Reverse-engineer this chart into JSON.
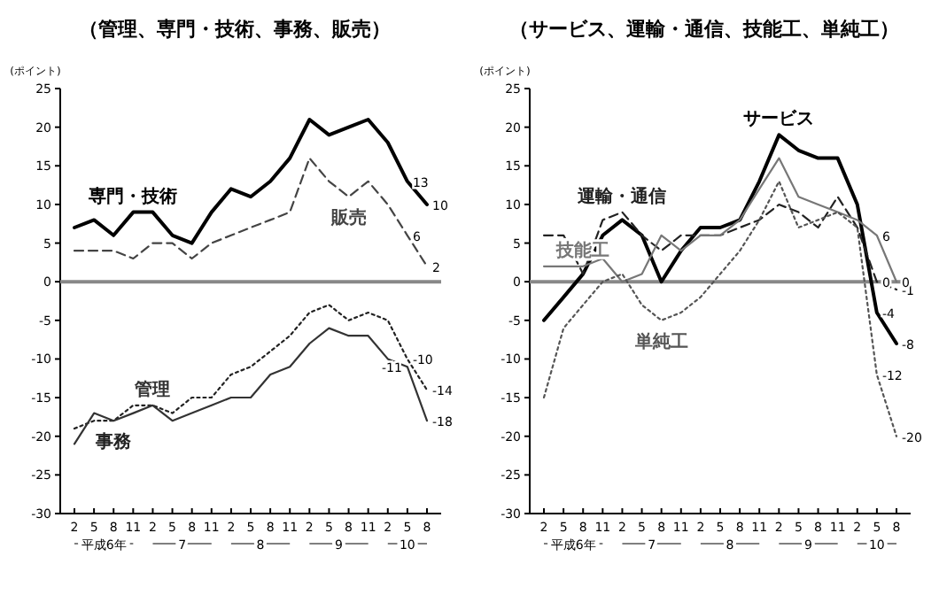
{
  "chart_data": [
    {
      "type": "line",
      "title": "（管理、専門・技術、事務、販売）",
      "ylabel": "(ポイント)",
      "categories": [
        "2",
        "5",
        "8",
        "11",
        "2",
        "5",
        "8",
        "11",
        "2",
        "5",
        "8",
        "11",
        "2",
        "5",
        "8",
        "11",
        "2",
        "5",
        "8"
      ],
      "annotations": [
        "平成6年",
        "7",
        "8",
        "9",
        "10"
      ],
      "ylim": [
        -30,
        25
      ],
      "yticks": [
        -30,
        -25,
        -20,
        -15,
        -10,
        -5,
        0,
        5,
        10,
        15,
        20,
        25
      ],
      "ref_lines": [
        {
          "axis": "y",
          "value": 0,
          "color": "#888888"
        }
      ],
      "series": [
        {
          "name": "専門・技術",
          "color": "#000000",
          "line_style": "solid",
          "values": [
            7,
            8,
            6,
            9,
            9,
            6,
            5,
            9,
            12,
            11,
            13,
            16,
            21,
            19,
            20,
            21,
            18,
            13,
            10
          ],
          "value_labels": [
            null,
            null,
            null,
            null,
            null,
            null,
            null,
            null,
            null,
            null,
            null,
            null,
            null,
            null,
            null,
            null,
            null,
            "13",
            "10"
          ]
        },
        {
          "name": "販売",
          "color": "#444444",
          "line_style": "dashed",
          "values": [
            4,
            4,
            4,
            3,
            5,
            5,
            3,
            5,
            6,
            7,
            8,
            9,
            16,
            13,
            11,
            13,
            10,
            6,
            2
          ],
          "value_labels": [
            null,
            null,
            null,
            null,
            null,
            null,
            null,
            null,
            null,
            null,
            null,
            null,
            null,
            null,
            null,
            null,
            null,
            "6",
            "2"
          ]
        },
        {
          "name": "事務",
          "color": "#222222",
          "line_style": "dotted",
          "values": [
            -19,
            -18,
            -18,
            -16,
            -16,
            -17,
            -15,
            -15,
            -12,
            -11,
            -9,
            -7,
            -4,
            -3,
            -5,
            -4,
            -5,
            -10,
            -14
          ],
          "value_labels": [
            null,
            null,
            null,
            null,
            null,
            null,
            null,
            null,
            null,
            null,
            null,
            null,
            null,
            null,
            null,
            null,
            null,
            "-10",
            "-14"
          ]
        },
        {
          "name": "管理",
          "color": "#333333",
          "line_style": "solid",
          "values": [
            -21,
            -17,
            -18,
            -17,
            -16,
            -18,
            -17,
            -16,
            -15,
            -15,
            -12,
            -11,
            -8,
            -6,
            -7,
            -7,
            -10,
            -11,
            -18
          ],
          "value_labels": [
            null,
            null,
            null,
            null,
            null,
            null,
            null,
            null,
            null,
            null,
            null,
            null,
            null,
            null,
            null,
            null,
            null,
            "-11",
            "-18"
          ]
        }
      ]
    },
    {
      "type": "line",
      "title": "（サービス、運輸・通信、技能工、単純工）",
      "ylabel": "(ポイント)",
      "categories": [
        "2",
        "5",
        "8",
        "11",
        "2",
        "5",
        "8",
        "11",
        "2",
        "5",
        "8",
        "11",
        "2",
        "5",
        "8",
        "11",
        "2",
        "5",
        "8"
      ],
      "annotations": [
        "平成6年",
        "7",
        "8",
        "9",
        "10"
      ],
      "ylim": [
        -30,
        25
      ],
      "yticks": [
        -30,
        -25,
        -20,
        -15,
        -10,
        -5,
        0,
        5,
        10,
        15,
        20,
        25
      ],
      "ref_lines": [
        {
          "axis": "y",
          "value": 0,
          "color": "#888888"
        }
      ],
      "series": [
        {
          "name": "サービス",
          "color": "#000000",
          "line_style": "solid",
          "values": [
            -5,
            -2,
            1,
            6,
            8,
            6,
            0,
            4,
            7,
            7,
            8,
            13,
            19,
            17,
            16,
            16,
            10,
            -4,
            -8
          ],
          "value_labels": [
            null,
            null,
            null,
            null,
            null,
            null,
            null,
            null,
            null,
            null,
            null,
            null,
            null,
            null,
            null,
            null,
            null,
            "-4",
            "-8"
          ]
        },
        {
          "name": "運輸・通信",
          "color": "#222222",
          "line_style": "dashed",
          "values": [
            6,
            6,
            1,
            8,
            9,
            6,
            4,
            6,
            6,
            6,
            7,
            8,
            10,
            9,
            7,
            11,
            7,
            0,
            -1
          ],
          "value_labels": [
            null,
            null,
            null,
            null,
            null,
            null,
            null,
            null,
            null,
            null,
            null,
            null,
            null,
            null,
            null,
            null,
            null,
            "0",
            "-1"
          ]
        },
        {
          "name": "技能工",
          "color": "#777777",
          "line_style": "solid",
          "values": [
            2,
            2,
            2,
            3,
            0,
            1,
            6,
            4,
            6,
            6,
            8,
            12,
            16,
            11,
            10,
            9,
            8,
            6,
            0
          ],
          "value_labels": [
            null,
            null,
            null,
            null,
            null,
            null,
            null,
            null,
            null,
            null,
            null,
            null,
            null,
            null,
            null,
            null,
            null,
            "6",
            "0"
          ]
        },
        {
          "name": "単純工",
          "color": "#555555",
          "line_style": "dotted",
          "values": [
            -15,
            -6,
            -3,
            0,
            1,
            -3,
            -5,
            -4,
            -2,
            1,
            4,
            8,
            13,
            7,
            8,
            9,
            7,
            -12,
            -20
          ],
          "value_labels": [
            null,
            null,
            null,
            null,
            null,
            null,
            null,
            null,
            null,
            null,
            null,
            null,
            null,
            null,
            null,
            null,
            null,
            "-12",
            "-20"
          ]
        }
      ]
    }
  ]
}
